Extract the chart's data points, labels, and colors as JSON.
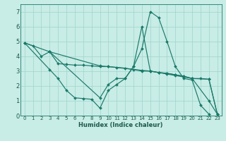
{
  "xlabel": "Humidex (Indice chaleur)",
  "bg_color": "#c8ece6",
  "grid_color": "#9ed4cc",
  "line_color": "#1a7a6a",
  "xlim": [
    -0.5,
    23.5
  ],
  "ylim": [
    0,
    7.5
  ],
  "xticks": [
    0,
    1,
    2,
    3,
    4,
    5,
    6,
    7,
    8,
    9,
    10,
    11,
    12,
    13,
    14,
    15,
    16,
    17,
    18,
    19,
    20,
    21,
    22,
    23
  ],
  "yticks": [
    0,
    1,
    2,
    3,
    4,
    5,
    6,
    7
  ],
  "line1_x": [
    0,
    1,
    2,
    3,
    4,
    5,
    6,
    7,
    8,
    9,
    10,
    11,
    12,
    13,
    14,
    15,
    16,
    17,
    18,
    19,
    20,
    21,
    22,
    23
  ],
  "line1_y": [
    4.9,
    4.7,
    4.0,
    4.3,
    3.5,
    3.45,
    3.4,
    3.4,
    3.35,
    3.3,
    3.3,
    3.25,
    3.2,
    3.1,
    3.0,
    3.0,
    2.9,
    2.85,
    2.75,
    2.65,
    2.5,
    2.5,
    2.45,
    0.1
  ],
  "line2_x": [
    0,
    3,
    4,
    5,
    6,
    7,
    8,
    9,
    10,
    11,
    12,
    13,
    14,
    15,
    16,
    17,
    18,
    19,
    20,
    21,
    22
  ],
  "line2_y": [
    4.9,
    3.1,
    2.5,
    1.7,
    1.2,
    1.15,
    1.1,
    0.5,
    1.7,
    2.1,
    2.5,
    3.3,
    4.5,
    7.0,
    6.6,
    5.0,
    3.3,
    2.5,
    2.4,
    0.7,
    0.1
  ],
  "line3_x": [
    0,
    3,
    9,
    10,
    14,
    15,
    16,
    17,
    18,
    19,
    20,
    22,
    23
  ],
  "line3_y": [
    4.9,
    4.3,
    3.35,
    3.3,
    3.05,
    3.0,
    2.9,
    2.85,
    2.75,
    2.65,
    2.5,
    2.45,
    0.1
  ],
  "line4_x": [
    3,
    9,
    10,
    11,
    12,
    13,
    14,
    15,
    16,
    17,
    18,
    19,
    20,
    22,
    23
  ],
  "line4_y": [
    4.3,
    1.2,
    2.1,
    2.5,
    2.5,
    3.3,
    6.0,
    3.0,
    2.9,
    2.8,
    2.7,
    2.6,
    2.5,
    1.0,
    0.1
  ]
}
